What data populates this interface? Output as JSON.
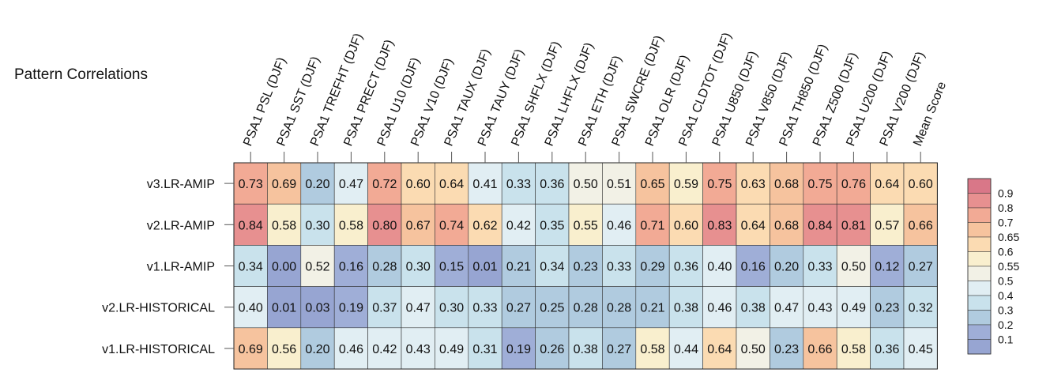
{
  "chart_data": {
    "type": "heatmap",
    "title": "Pattern Correlations",
    "columns": [
      "PSA1 PSL (DJF)",
      "PSA1 SST (DJF)",
      "PSA1 TREFHT (DJF)",
      "PSA1 PRECT (DJF)",
      "PSA1 U10 (DJF)",
      "PSA1 V10 (DJF)",
      "PSA1 TAUX (DJF)",
      "PSA1 TAUY (DJF)",
      "PSA1 SHFLX (DJF)",
      "PSA1 LHFLX (DJF)",
      "PSA1 ETH (DJF)",
      "PSA1 SWCRE (DJF)",
      "PSA1 OLR (DJF)",
      "PSA1 CLDTOT (DJF)",
      "PSA1 U850 (DJF)",
      "PSA1 V850 (DJF)",
      "PSA1 TH850 (DJF)",
      "PSA1 Z500 (DJF)",
      "PSA1 U200 (DJF)",
      "PSA1 V200 (DJF)",
      "Mean Score"
    ],
    "rows": [
      "v3.LR-AMIP",
      "v2.LR-AMIP",
      "v1.LR-AMIP",
      "v2.LR-HISTORICAL",
      "v1.LR-HISTORICAL"
    ],
    "values": [
      [
        "0.73",
        "0.69",
        "0.20",
        "0.47",
        "0.72",
        "0.60",
        "0.64",
        "0.41",
        "0.33",
        "0.36",
        "0.50",
        "0.51",
        "0.65",
        "0.59",
        "0.75",
        "0.63",
        "0.68",
        "0.75",
        "0.76",
        "0.64",
        "0.60"
      ],
      [
        "0.84",
        "0.58",
        "0.30",
        "0.58",
        "0.80",
        "0.67",
        "0.74",
        "0.62",
        "0.42",
        "0.35",
        "0.55",
        "0.46",
        "0.71",
        "0.60",
        "0.83",
        "0.64",
        "0.68",
        "0.84",
        "0.81",
        "0.57",
        "0.66"
      ],
      [
        "0.34",
        "0.00",
        "0.52",
        "0.16",
        "0.28",
        "0.30",
        "0.15",
        "0.01",
        "0.21",
        "0.34",
        "0.23",
        "0.33",
        "0.29",
        "0.36",
        "0.40",
        "0.16",
        "0.20",
        "0.33",
        "0.50",
        "0.12",
        "0.27"
      ],
      [
        "0.40",
        "0.01",
        "0.03",
        "0.19",
        "0.37",
        "0.47",
        "0.30",
        "0.33",
        "0.27",
        "0.25",
        "0.28",
        "0.28",
        "0.21",
        "0.38",
        "0.46",
        "0.38",
        "0.47",
        "0.43",
        "0.49",
        "0.23",
        "0.32"
      ],
      [
        "0.69",
        "0.56",
        "0.20",
        "0.46",
        "0.42",
        "0.43",
        "0.49",
        "0.31",
        "0.19",
        "0.26",
        "0.38",
        "0.27",
        "0.58",
        "0.44",
        "0.64",
        "0.50",
        "0.23",
        "0.66",
        "0.58",
        "0.36",
        "0.45"
      ]
    ],
    "colorbar": {
      "ticks": [
        "0.9",
        "0.8",
        "0.7",
        "0.65",
        "0.6",
        "0.55",
        "0.5",
        "0.4",
        "0.3",
        "0.2",
        "0.1"
      ],
      "colors": [
        "#d97788",
        "#e79090",
        "#f2aa95",
        "#f6c39e",
        "#fbdbb2",
        "#f9efce",
        "#f2f1e6",
        "#e1eef3",
        "#c9e2ec",
        "#b0cbdf",
        "#9faed7",
        "#97a5d2"
      ]
    }
  }
}
